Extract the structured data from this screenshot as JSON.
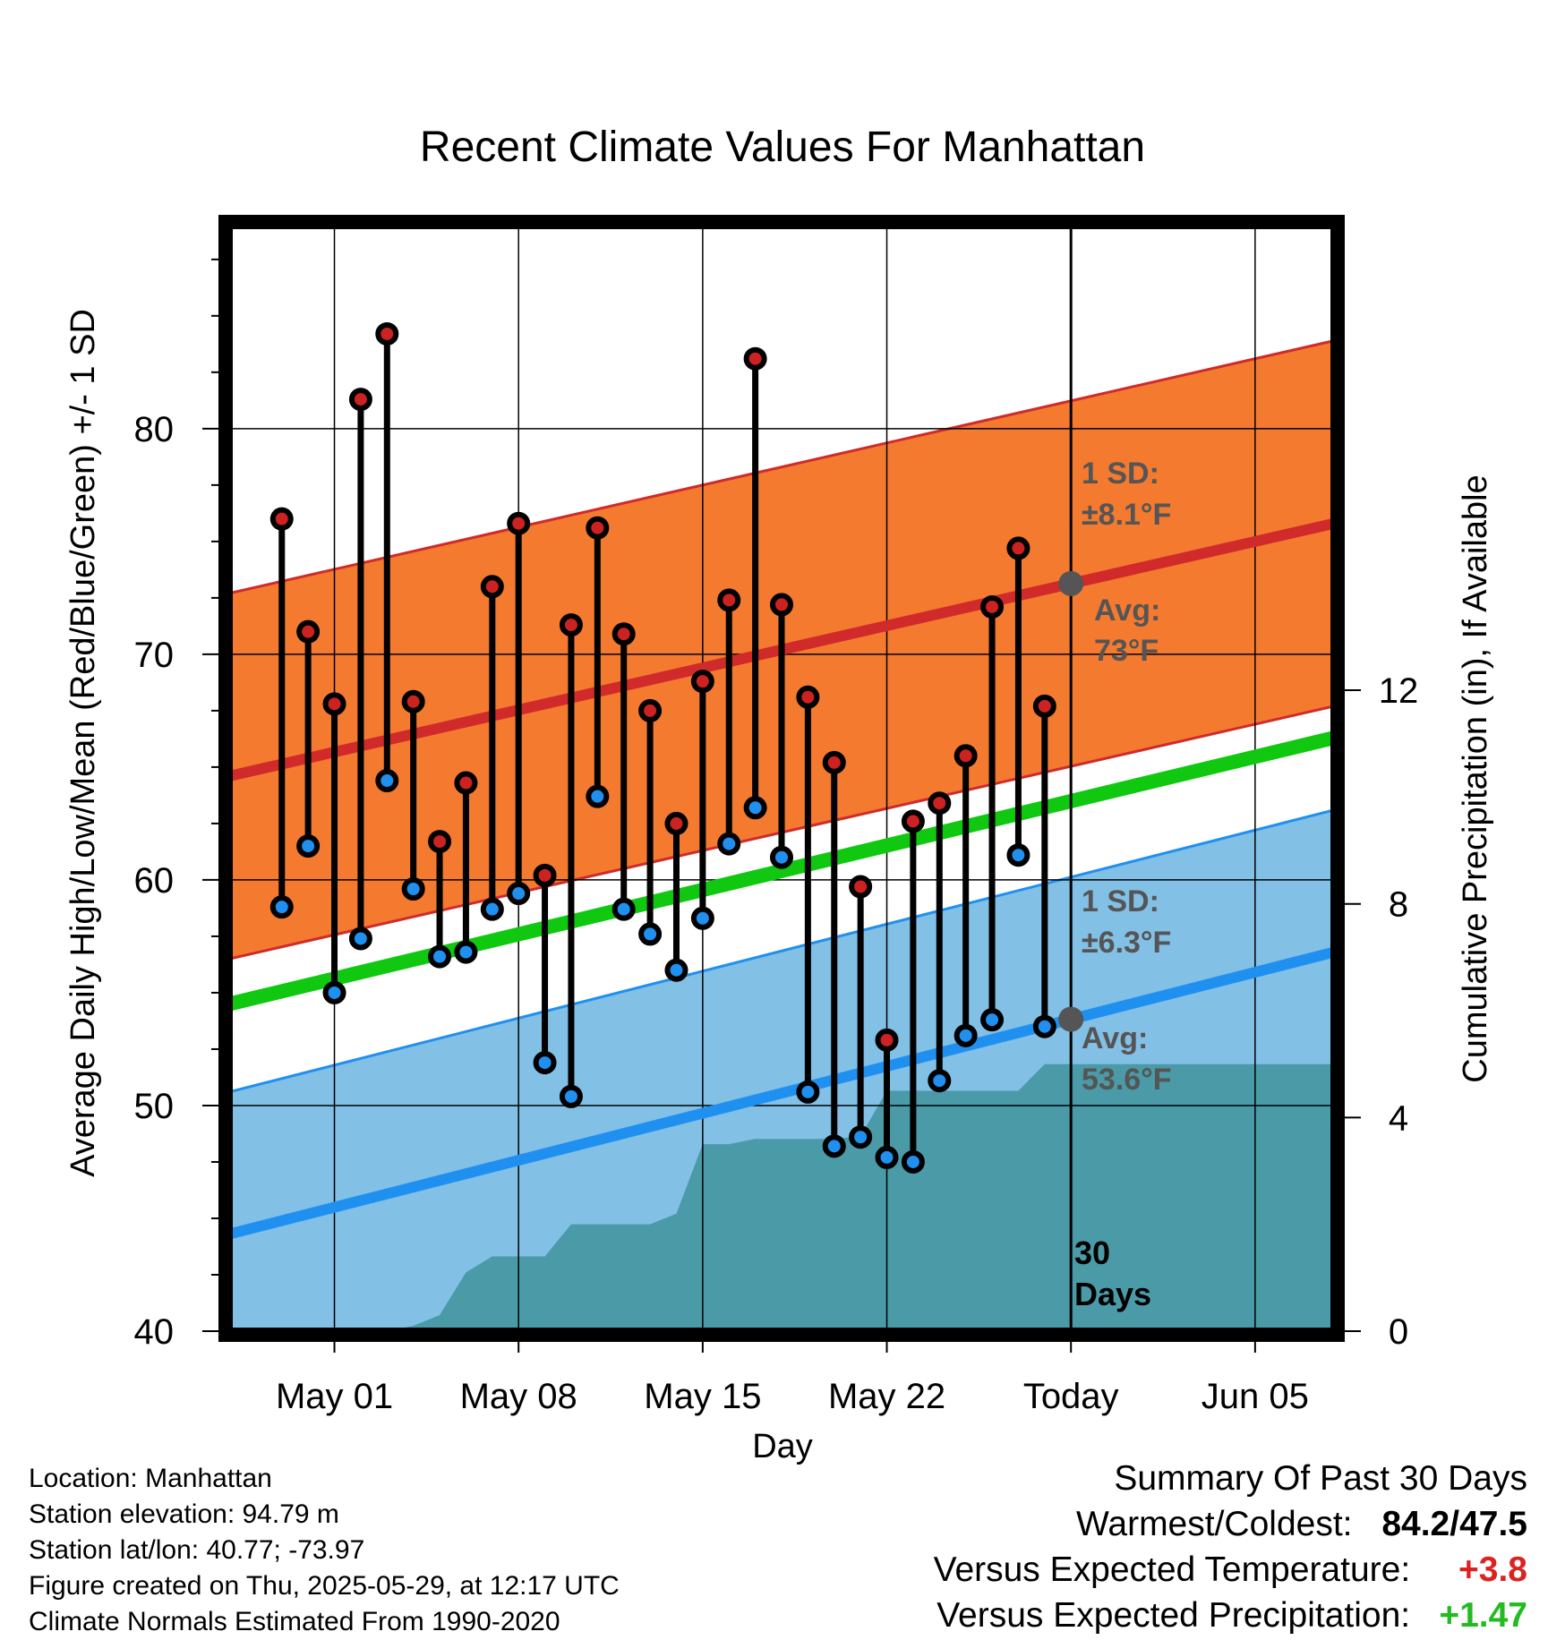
{
  "chart_data": {
    "type": "line",
    "title": "Recent Climate Values For Manhattan",
    "xlabel": "Day",
    "ylabel": "Average Daily High/Low/Mean (Red/Blue/Green) +/- 1 SD",
    "y2label": "Cumulative Precipitation (in), If Available",
    "ylim": [
      40,
      89
    ],
    "y2lim": [
      0,
      20.7
    ],
    "y_ticks": [
      "40",
      "50",
      "60",
      "70",
      "80"
    ],
    "y2_ticks": [
      "0",
      "4",
      "8",
      "12"
    ],
    "x_ticks": [
      "May 01",
      "May 08",
      "May 15",
      "May 22",
      "Today",
      "Jun 05"
    ],
    "x_range_days": [
      "2025-04-27",
      "2025-06-08"
    ],
    "today": "2025-05-29",
    "days": [
      "2025-04-29",
      "2025-04-30",
      "2025-05-01",
      "2025-05-02",
      "2025-05-03",
      "2025-05-04",
      "2025-05-05",
      "2025-05-06",
      "2025-05-07",
      "2025-05-08",
      "2025-05-09",
      "2025-05-10",
      "2025-05-11",
      "2025-05-12",
      "2025-05-13",
      "2025-05-14",
      "2025-05-15",
      "2025-05-16",
      "2025-05-17",
      "2025-05-18",
      "2025-05-19",
      "2025-05-20",
      "2025-05-21",
      "2025-05-22",
      "2025-05-23",
      "2025-05-24",
      "2025-05-25",
      "2025-05-26",
      "2025-05-27",
      "2025-05-28"
    ],
    "daily_high": [
      76.0,
      71.0,
      67.8,
      81.3,
      84.2,
      67.9,
      61.7,
      64.3,
      73.0,
      75.8,
      60.2,
      71.3,
      75.6,
      70.9,
      67.5,
      62.5,
      68.8,
      72.4,
      83.1,
      72.2,
      68.1,
      65.2,
      59.7,
      52.9,
      62.6,
      63.4,
      65.5,
      72.1,
      74.7,
      67.7
    ],
    "daily_low": [
      58.8,
      61.5,
      55.0,
      57.4,
      64.4,
      59.6,
      56.6,
      56.8,
      58.7,
      59.4,
      51.9,
      50.4,
      63.7,
      58.7,
      57.6,
      56.0,
      58.3,
      61.6,
      63.2,
      61.0,
      50.6,
      48.2,
      48.6,
      47.7,
      47.5,
      51.1,
      53.1,
      53.8,
      61.1,
      53.5
    ],
    "normal_high": {
      "start": 64.6,
      "end": 75.8,
      "sd": 8.1
    },
    "normal_low": {
      "start": 44.3,
      "end": 56.8,
      "sd": 6.3
    },
    "normal_mean": {
      "start": 54.5,
      "end": 66.3
    },
    "precip_cumulative": [
      0,
      0,
      0,
      0,
      0,
      0.1,
      0.3,
      1.1,
      1.4,
      1.4,
      1.4,
      2.0,
      2.0,
      2.0,
      2.0,
      2.2,
      3.5,
      3.5,
      3.6,
      3.6,
      3.6,
      3.6,
      3.65,
      4.5,
      4.5,
      4.5,
      4.5,
      4.5,
      4.5,
      5.0
    ],
    "annotations": {
      "high_sd_label": "1 SD:",
      "high_sd_value": "±8.1°F",
      "high_avg_label": "Avg:",
      "high_avg_value": "73°F",
      "low_sd_label": "1 SD:",
      "low_sd_value": "±6.3°F",
      "low_avg_label": "Avg:",
      "low_avg_value": "53.6°F",
      "days_count": "30",
      "days_word": "Days"
    },
    "colors": {
      "high_band": "#f47a30",
      "high_line": "#d02a2a",
      "low_band": "#82c0e6",
      "low_line": "#2090f0",
      "mean_line": "#10c810",
      "precip": "#4a9aa8",
      "high_dot": "#cc2222",
      "low_dot": "#2090f0",
      "marker": "#555555"
    }
  },
  "footer": {
    "location": "Location: Manhattan",
    "elevation": "Station elevation: 94.79 m",
    "latlon": "Station lat/lon: 40.77; -73.97",
    "created": "Figure created on Thu, 2025-05-29, at 12:17 UTC",
    "normals": "Climate Normals Estimated From 1990-2020"
  },
  "summary": {
    "heading": "Summary Of Past 30 Days",
    "warm_label": "Warmest/Coldest:",
    "warm_value": "84.2/47.5",
    "temp_label": "Versus Expected Temperature:",
    "temp_value": "+3.8",
    "temp_color": "#dd2222",
    "precip_label": "Versus Expected Precipitation:",
    "precip_value": "+1.47",
    "precip_color": "#22bb22"
  }
}
